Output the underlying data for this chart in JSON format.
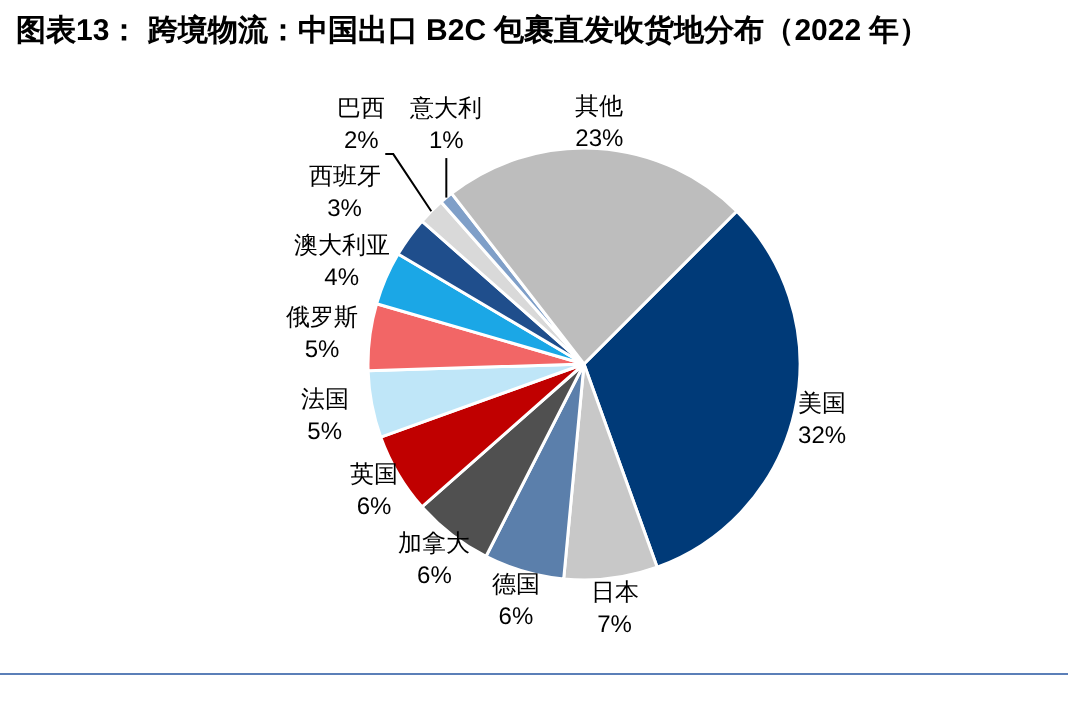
{
  "chart_data": {
    "type": "pie",
    "title": "图表13：  跨境物流：中国出口 B2C 包裹直发收货地分布（2022 年）",
    "categories": [
      "美国",
      "日本",
      "德国",
      "加拿大",
      "英国",
      "法国",
      "俄罗斯",
      "澳大利亚",
      "西班牙",
      "巴西",
      "意大利",
      "其他"
    ],
    "values": [
      32,
      7,
      6,
      6,
      6,
      5,
      5,
      4,
      3,
      2,
      1,
      23
    ],
    "colors": [
      "#003a78",
      "#c8c8c8",
      "#5b7fab",
      "#505050",
      "#c00000",
      "#bfe6f8",
      "#f26666",
      "#1ba7e6",
      "#1f4e8c",
      "#d9d9d9",
      "#7f9fc8",
      "#bdbdbd"
    ],
    "value_labels": [
      "32%",
      "7%",
      "6%",
      "6%",
      "6%",
      "5%",
      "5%",
      "4%",
      "3%",
      "2%",
      "1%",
      "23%"
    ]
  }
}
